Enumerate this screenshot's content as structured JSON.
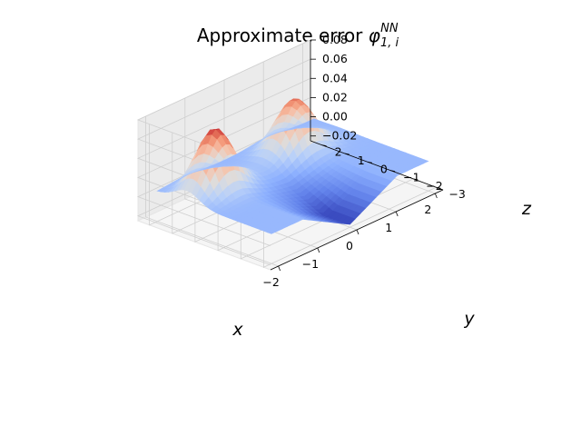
{
  "chart_data": {
    "type": "surface",
    "title": {
      "prefix": "Approximate error ",
      "symbol": "φ",
      "subscript": "1, i",
      "superscript": "NN"
    },
    "xlabel": "x",
    "ylabel": "y",
    "zlabel": "z",
    "xlim": [
      -2.2,
      2.2
    ],
    "ylim": [
      -3.3,
      2.5
    ],
    "zlim": [
      -0.025,
      0.08
    ],
    "x_ticks": [
      -2,
      -1,
      0,
      1,
      2
    ],
    "x_tick_labels": [
      "−2",
      "−1",
      "0",
      "1",
      "2"
    ],
    "y_ticks": [
      -3,
      -2,
      -1,
      0,
      1,
      2
    ],
    "y_tick_labels": [
      "−3",
      "−2",
      "−1",
      "0",
      "1",
      "2"
    ],
    "z_ticks": [
      -0.02,
      0.0,
      0.02,
      0.04,
      0.06,
      0.08
    ],
    "z_tick_labels": [
      "−0.02",
      "0.00",
      "0.02",
      "0.04",
      "0.06",
      "0.08"
    ],
    "colormap": "coolwarm",
    "grid": true,
    "surface": {
      "x_range": [
        -2,
        2
      ],
      "y_range": [
        -3,
        2
      ],
      "peaks": [
        {
          "x": -1.3,
          "y": 0.7,
          "z": 0.07
        },
        {
          "x": 0.8,
          "y": 0.8,
          "z": 0.06
        }
      ],
      "trough": {
        "x": 0.0,
        "y": -2.0,
        "z": -0.022
      }
    }
  }
}
